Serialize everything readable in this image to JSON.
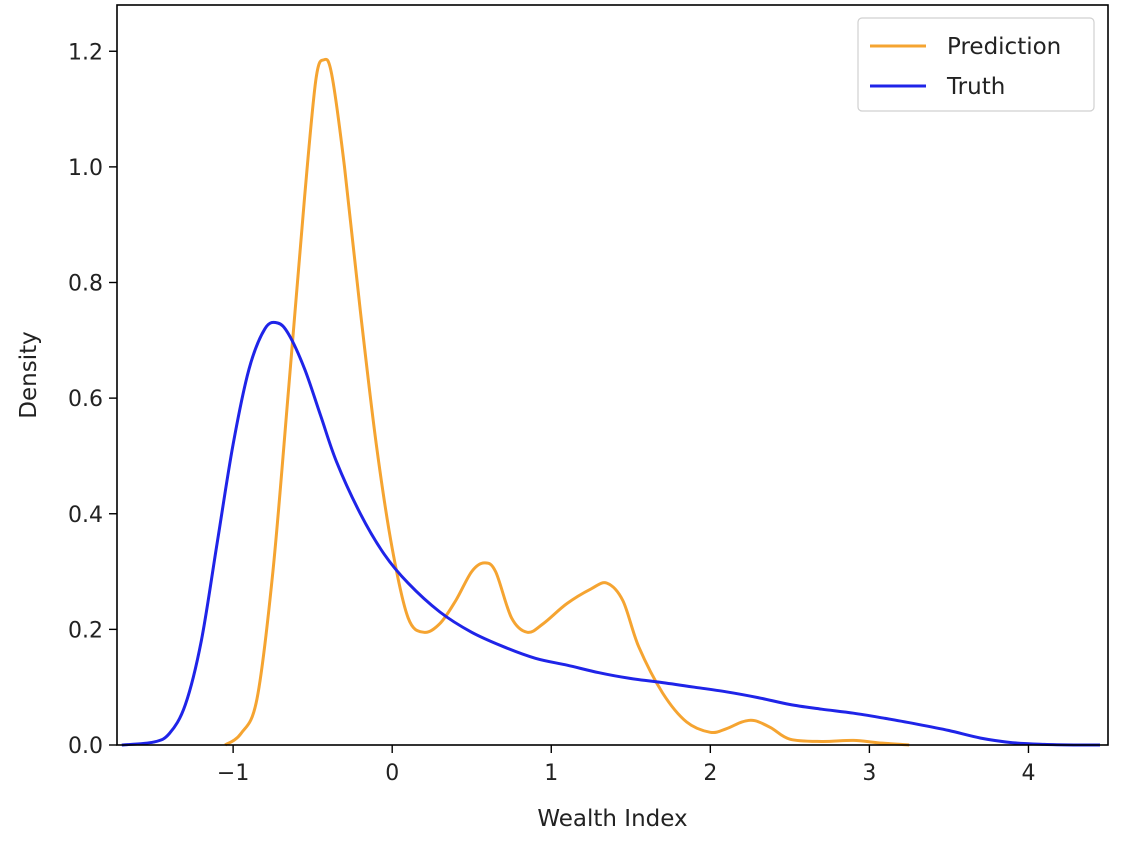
{
  "chart_data": {
    "type": "line",
    "title": "",
    "xlabel": "Wealth Index",
    "ylabel": "Density",
    "xlim": [
      -1.73,
      4.5
    ],
    "ylim": [
      0,
      1.28
    ],
    "xticks": [
      {
        "value": -1,
        "label": "−1"
      },
      {
        "value": 0,
        "label": "0"
      },
      {
        "value": 1,
        "label": "1"
      },
      {
        "value": 2,
        "label": "2"
      },
      {
        "value": 3,
        "label": "3"
      },
      {
        "value": 4,
        "label": "4"
      }
    ],
    "yticks": [
      {
        "value": 0,
        "label": "0.0"
      },
      {
        "value": 0.2,
        "label": "0.2"
      },
      {
        "value": 0.4,
        "label": "0.4"
      },
      {
        "value": 0.6,
        "label": "0.6"
      },
      {
        "value": 0.8,
        "label": "0.8"
      },
      {
        "value": 1.0,
        "label": "1.0"
      },
      {
        "value": 1.2,
        "label": "1.2"
      }
    ],
    "grid": false,
    "legend_position": "top-right",
    "series": [
      {
        "name": "Prediction",
        "color": "#f5a431",
        "points": [
          [
            -1.05,
            0.0
          ],
          [
            -0.95,
            0.02
          ],
          [
            -0.85,
            0.08
          ],
          [
            -0.75,
            0.3
          ],
          [
            -0.65,
            0.62
          ],
          [
            -0.55,
            0.95
          ],
          [
            -0.48,
            1.15
          ],
          [
            -0.43,
            1.185
          ],
          [
            -0.38,
            1.16
          ],
          [
            -0.3,
            1.0
          ],
          [
            -0.2,
            0.75
          ],
          [
            -0.1,
            0.52
          ],
          [
            0.0,
            0.34
          ],
          [
            0.1,
            0.22
          ],
          [
            0.2,
            0.195
          ],
          [
            0.3,
            0.21
          ],
          [
            0.4,
            0.25
          ],
          [
            0.5,
            0.3
          ],
          [
            0.58,
            0.315
          ],
          [
            0.65,
            0.3
          ],
          [
            0.75,
            0.22
          ],
          [
            0.85,
            0.195
          ],
          [
            0.95,
            0.21
          ],
          [
            1.1,
            0.245
          ],
          [
            1.25,
            0.27
          ],
          [
            1.35,
            0.28
          ],
          [
            1.45,
            0.25
          ],
          [
            1.55,
            0.17
          ],
          [
            1.7,
            0.09
          ],
          [
            1.85,
            0.04
          ],
          [
            2.0,
            0.022
          ],
          [
            2.1,
            0.028
          ],
          [
            2.2,
            0.04
          ],
          [
            2.28,
            0.042
          ],
          [
            2.38,
            0.03
          ],
          [
            2.5,
            0.01
          ],
          [
            2.7,
            0.006
          ],
          [
            2.9,
            0.008
          ],
          [
            3.05,
            0.004
          ],
          [
            3.25,
            0.0
          ]
        ]
      },
      {
        "name": "Truth",
        "color": "#1f24e8",
        "points": [
          [
            -1.7,
            0.0
          ],
          [
            -1.5,
            0.005
          ],
          [
            -1.4,
            0.02
          ],
          [
            -1.3,
            0.07
          ],
          [
            -1.2,
            0.18
          ],
          [
            -1.1,
            0.35
          ],
          [
            -1.0,
            0.52
          ],
          [
            -0.9,
            0.65
          ],
          [
            -0.8,
            0.72
          ],
          [
            -0.72,
            0.73
          ],
          [
            -0.65,
            0.71
          ],
          [
            -0.55,
            0.65
          ],
          [
            -0.45,
            0.57
          ],
          [
            -0.35,
            0.49
          ],
          [
            -0.2,
            0.4
          ],
          [
            -0.05,
            0.33
          ],
          [
            0.1,
            0.28
          ],
          [
            0.3,
            0.23
          ],
          [
            0.5,
            0.195
          ],
          [
            0.7,
            0.17
          ],
          [
            0.9,
            0.15
          ],
          [
            1.1,
            0.138
          ],
          [
            1.3,
            0.125
          ],
          [
            1.5,
            0.115
          ],
          [
            1.7,
            0.108
          ],
          [
            1.9,
            0.1
          ],
          [
            2.1,
            0.092
          ],
          [
            2.3,
            0.082
          ],
          [
            2.5,
            0.07
          ],
          [
            2.7,
            0.062
          ],
          [
            2.9,
            0.055
          ],
          [
            3.1,
            0.046
          ],
          [
            3.3,
            0.036
          ],
          [
            3.5,
            0.025
          ],
          [
            3.7,
            0.012
          ],
          [
            3.9,
            0.004
          ],
          [
            4.1,
            0.001
          ],
          [
            4.3,
            0.0
          ],
          [
            4.45,
            0.0
          ]
        ]
      }
    ]
  }
}
